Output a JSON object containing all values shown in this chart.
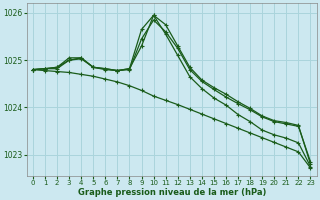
{
  "background_color": "#cce8f0",
  "grid_color": "#aad4dc",
  "line_color": "#1a5c1a",
  "title": "Graphe pression niveau de la mer (hPa)",
  "xlim": [
    -0.5,
    23.5
  ],
  "ylim": [
    1022.55,
    1026.2
  ],
  "yticks": [
    1023,
    1024,
    1025,
    1026
  ],
  "xticks": [
    0,
    1,
    2,
    3,
    4,
    5,
    6,
    7,
    8,
    9,
    10,
    11,
    12,
    13,
    14,
    15,
    16,
    17,
    18,
    19,
    20,
    21,
    22,
    23
  ],
  "series": [
    {
      "x": [
        0,
        1,
        2,
        3,
        4,
        5,
        6,
        7,
        8,
        9,
        10,
        11,
        12,
        13,
        14,
        15,
        16,
        17,
        18,
        19,
        20,
        21,
        22,
        23
      ],
      "y": [
        1024.8,
        1024.82,
        1024.82,
        1025.0,
        1025.05,
        1024.85,
        1024.8,
        1024.78,
        1024.8,
        1025.45,
        1025.85,
        1025.6,
        1025.25,
        1024.8,
        1024.55,
        1024.38,
        1024.22,
        1024.08,
        1023.95,
        1023.8,
        1023.7,
        1023.65,
        1023.6,
        1022.85
      ]
    },
    {
      "x": [
        0,
        1,
        2,
        3,
        4,
        5,
        6,
        7,
        8,
        9,
        10,
        11,
        12,
        13,
        14,
        15,
        16,
        17,
        18,
        19,
        20,
        21,
        22,
        23
      ],
      "y": [
        1024.8,
        1024.82,
        1024.85,
        1025.0,
        1025.03,
        1024.85,
        1024.82,
        1024.78,
        1024.82,
        1025.65,
        1025.95,
        1025.75,
        1025.3,
        1024.85,
        1024.58,
        1024.42,
        1024.28,
        1024.12,
        1023.98,
        1023.82,
        1023.72,
        1023.68,
        1023.62,
        1022.8
      ]
    },
    {
      "x": [
        0,
        1,
        2,
        3,
        4,
        5,
        6,
        7,
        8,
        9,
        10,
        11,
        12,
        13,
        14,
        15,
        16,
        17,
        18,
        19,
        20,
        21,
        22,
        23
      ],
      "y": [
        1024.8,
        1024.82,
        1024.85,
        1025.05,
        1025.05,
        1024.85,
        1024.82,
        1024.78,
        1024.82,
        1025.3,
        1025.95,
        1025.55,
        1025.1,
        1024.65,
        1024.4,
        1024.2,
        1024.05,
        1023.85,
        1023.7,
        1023.52,
        1023.42,
        1023.35,
        1023.25,
        1022.75
      ]
    },
    {
      "x": [
        0,
        1,
        2,
        3,
        4,
        5,
        6,
        7,
        8,
        9,
        10,
        11,
        12,
        13,
        14,
        15,
        16,
        17,
        18,
        19,
        20,
        21,
        22,
        23
      ],
      "y": [
        1024.8,
        1024.78,
        1024.76,
        1024.74,
        1024.7,
        1024.66,
        1024.6,
        1024.54,
        1024.46,
        1024.36,
        1024.24,
        1024.15,
        1024.06,
        1023.96,
        1023.86,
        1023.76,
        1023.66,
        1023.56,
        1023.46,
        1023.36,
        1023.26,
        1023.16,
        1023.06,
        1022.72
      ]
    }
  ]
}
